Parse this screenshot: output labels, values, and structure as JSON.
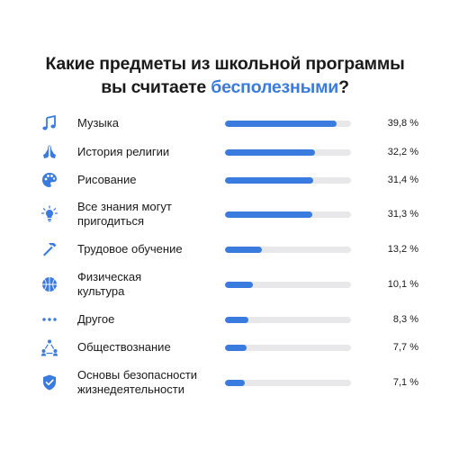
{
  "title": {
    "line1": "Какие предметы из школьной программы",
    "line2_pre": "вы считаете ",
    "line2_accent": "бесполезными",
    "line2_post": "?"
  },
  "colors": {
    "accent": "#3a7be0",
    "track": "#e8e8ea",
    "text": "#1a1a1a"
  },
  "chart_data": {
    "type": "bar",
    "orientation": "horizontal",
    "title": "Какие предметы из школьной программы вы считаете бесполезными?",
    "xlim": [
      0,
      45
    ],
    "categories": [
      "Музыка",
      "История религии",
      "Рисование",
      "Все знания могут пригодиться",
      "Трудовое обучение",
      "Физическая культура",
      "Другое",
      "Обществознание",
      "Основы безопасности жизнедеятельности"
    ],
    "values": [
      39.8,
      32.2,
      31.4,
      31.3,
      13.2,
      10.1,
      8.3,
      7.7,
      7.1
    ],
    "items": [
      {
        "label1": "Музыка",
        "label2": "",
        "value_text": "39,8 %",
        "value": 39.8,
        "icon": "music-note-icon"
      },
      {
        "label1": "История религии",
        "label2": "",
        "value_text": "32,2 %",
        "value": 32.2,
        "icon": "praying-hands-icon"
      },
      {
        "label1": "Рисование",
        "label2": "",
        "value_text": "31,4 %",
        "value": 31.4,
        "icon": "palette-icon"
      },
      {
        "label1": "Все знания могут",
        "label2": "пригодиться",
        "value_text": "31,3 %",
        "value": 31.3,
        "icon": "lightbulb-icon"
      },
      {
        "label1": "Трудовое обучение",
        "label2": "",
        "value_text": "13,2 %",
        "value": 13.2,
        "icon": "hammer-icon"
      },
      {
        "label1": "Физическая",
        "label2": "культура",
        "value_text": "10,1 %",
        "value": 10.1,
        "icon": "basketball-icon"
      },
      {
        "label1": "Другое",
        "label2": "",
        "value_text": "8,3 %",
        "value": 8.3,
        "icon": "three-dots-icon"
      },
      {
        "label1": "Обществознание",
        "label2": "",
        "value_text": "7,7 %",
        "value": 7.7,
        "icon": "people-triangle-icon"
      },
      {
        "label1": "Основы безопасности",
        "label2": "жизнедеятельности",
        "value_text": "7,1 %",
        "value": 7.1,
        "icon": "shield-check-icon"
      }
    ]
  }
}
